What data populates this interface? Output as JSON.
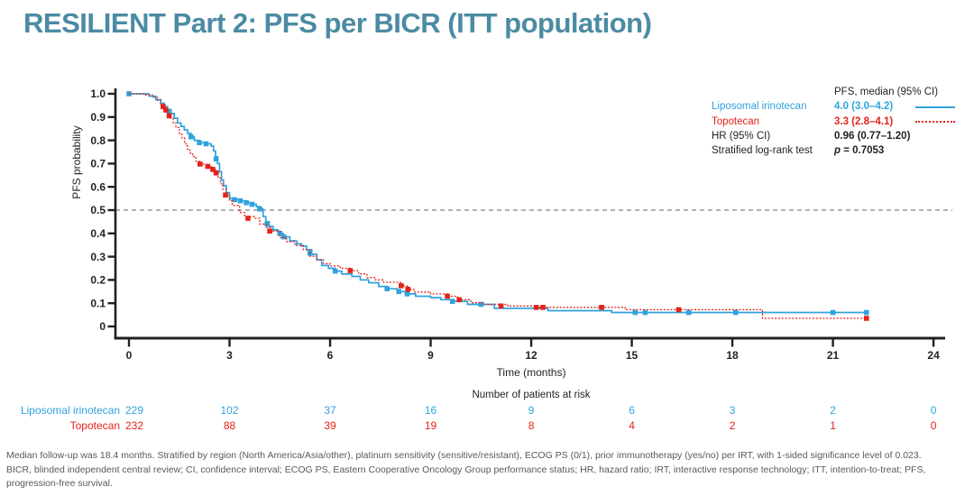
{
  "slide": {
    "title": "RESILIENT Part 2: PFS per BICR (ITT population)"
  },
  "colors": {
    "title": "#4b8ba3",
    "liposomal_irinotecan": "#30a3dd",
    "topotecan": "#e2231a",
    "axis": "#231f20",
    "reference_line": "#999999",
    "footnote": "#58595b"
  },
  "legend": {
    "header": "PFS, median (95% CI)",
    "rows": [
      {
        "label": "Liposomal irinotecan",
        "value": "4.0 (3.0–4.2)"
      },
      {
        "label": "Topotecan",
        "value": "3.3 (2.8–4.1)"
      },
      {
        "label": "HR (95% CI)",
        "value": "0.96 (0.77–1.20)"
      },
      {
        "label": "Stratified log-rank test",
        "p_symbol": "p",
        "p_value": "= 0.7053"
      }
    ]
  },
  "chart_data": {
    "type": "line",
    "subtype": "kaplan-meier-step",
    "title": "",
    "xlabel": "Time (months)",
    "ylabel": "PFS probability",
    "xlim": [
      0,
      24
    ],
    "ylim": [
      0,
      1.0
    ],
    "xticks": [
      0,
      3,
      6,
      9,
      12,
      15,
      18,
      21,
      24
    ],
    "ytick_labels": [
      "0",
      "0.1",
      "0.2",
      "0.3",
      "0.4",
      "0.5",
      "0.6",
      "0.7",
      "0.8",
      "0.9",
      "1.0"
    ],
    "reference_line_y": 0.5,
    "grid": false,
    "legend_position": "top-right",
    "hazard_ratio": "0.96 (0.77–1.20)",
    "log_rank_p": "0.7053",
    "series": [
      {
        "name": "Liposomal irinotecan",
        "color": "#30a3dd",
        "line_style": "solid",
        "median_months": 4.0,
        "median_ci": "3.0–4.2",
        "steps": [
          [
            0,
            1
          ],
          [
            0.6,
            0.99
          ],
          [
            0.8,
            0.975
          ],
          [
            0.95,
            0.96
          ],
          [
            1.05,
            0.945
          ],
          [
            1.15,
            0.93
          ],
          [
            1.25,
            0.915
          ],
          [
            1.35,
            0.895
          ],
          [
            1.45,
            0.875
          ],
          [
            1.55,
            0.86
          ],
          [
            1.65,
            0.845
          ],
          [
            1.75,
            0.83
          ],
          [
            1.85,
            0.815
          ],
          [
            1.95,
            0.8
          ],
          [
            2.1,
            0.79
          ],
          [
            2.3,
            0.785
          ],
          [
            2.45,
            0.775
          ],
          [
            2.52,
            0.755
          ],
          [
            2.58,
            0.73
          ],
          [
            2.64,
            0.7
          ],
          [
            2.7,
            0.665
          ],
          [
            2.76,
            0.63
          ],
          [
            2.82,
            0.605
          ],
          [
            2.9,
            0.575
          ],
          [
            3.0,
            0.55
          ],
          [
            3.1,
            0.545
          ],
          [
            3.3,
            0.54
          ],
          [
            3.5,
            0.532
          ],
          [
            3.65,
            0.525
          ],
          [
            3.8,
            0.515
          ],
          [
            3.9,
            0.505
          ],
          [
            4.0,
            0.472
          ],
          [
            4.08,
            0.45
          ],
          [
            4.18,
            0.43
          ],
          [
            4.3,
            0.415
          ],
          [
            4.45,
            0.4
          ],
          [
            4.6,
            0.385
          ],
          [
            4.8,
            0.368
          ],
          [
            5.0,
            0.355
          ],
          [
            5.15,
            0.345
          ],
          [
            5.3,
            0.33
          ],
          [
            5.45,
            0.31
          ],
          [
            5.6,
            0.287
          ],
          [
            5.75,
            0.262
          ],
          [
            5.95,
            0.25
          ],
          [
            6.15,
            0.238
          ],
          [
            6.35,
            0.225
          ],
          [
            6.65,
            0.215
          ],
          [
            6.9,
            0.2
          ],
          [
            7.15,
            0.188
          ],
          [
            7.45,
            0.172
          ],
          [
            7.7,
            0.162
          ],
          [
            8.0,
            0.15
          ],
          [
            8.25,
            0.14
          ],
          [
            8.55,
            0.13
          ],
          [
            9.0,
            0.124
          ],
          [
            9.3,
            0.115
          ],
          [
            9.7,
            0.108
          ],
          [
            10.1,
            0.095
          ],
          [
            10.9,
            0.078
          ],
          [
            12.5,
            0.068
          ],
          [
            14.4,
            0.06
          ],
          [
            22.0,
            0.06
          ]
        ],
        "censor_marks": [
          [
            0,
            1
          ],
          [
            1.2,
            0.925
          ],
          [
            1.85,
            0.815
          ],
          [
            2.1,
            0.79
          ],
          [
            2.3,
            0.785
          ],
          [
            2.6,
            0.72
          ],
          [
            3.15,
            0.545
          ],
          [
            3.32,
            0.54
          ],
          [
            3.5,
            0.532
          ],
          [
            3.67,
            0.525
          ],
          [
            3.9,
            0.505
          ],
          [
            4.12,
            0.44
          ],
          [
            4.5,
            0.4
          ],
          [
            4.62,
            0.385
          ],
          [
            5.4,
            0.315
          ],
          [
            6.15,
            0.238
          ],
          [
            7.7,
            0.162
          ],
          [
            8.05,
            0.15
          ],
          [
            8.3,
            0.14
          ],
          [
            9.65,
            0.108
          ],
          [
            10.5,
            0.095
          ],
          [
            15.1,
            0.06
          ],
          [
            15.4,
            0.06
          ],
          [
            16.7,
            0.06
          ],
          [
            18.1,
            0.06
          ],
          [
            21.0,
            0.06
          ],
          [
            22.0,
            0.06
          ]
        ]
      },
      {
        "name": "Topotecan",
        "color": "#e2231a",
        "line_style": "dotted",
        "median_months": 3.3,
        "median_ci": "2.8–4.1",
        "steps": [
          [
            0,
            1
          ],
          [
            0.5,
            0.995
          ],
          [
            0.7,
            0.985
          ],
          [
            0.85,
            0.972
          ],
          [
            0.95,
            0.955
          ],
          [
            1.05,
            0.935
          ],
          [
            1.15,
            0.915
          ],
          [
            1.25,
            0.895
          ],
          [
            1.32,
            0.875
          ],
          [
            1.4,
            0.855
          ],
          [
            1.5,
            0.83
          ],
          [
            1.58,
            0.81
          ],
          [
            1.66,
            0.785
          ],
          [
            1.74,
            0.762
          ],
          [
            1.82,
            0.745
          ],
          [
            1.9,
            0.73
          ],
          [
            2.0,
            0.71
          ],
          [
            2.1,
            0.698
          ],
          [
            2.3,
            0.688
          ],
          [
            2.45,
            0.675
          ],
          [
            2.58,
            0.66
          ],
          [
            2.66,
            0.638
          ],
          [
            2.73,
            0.613
          ],
          [
            2.8,
            0.59
          ],
          [
            2.9,
            0.565
          ],
          [
            3.0,
            0.54
          ],
          [
            3.08,
            0.52
          ],
          [
            3.3,
            0.49
          ],
          [
            3.45,
            0.472
          ],
          [
            3.75,
            0.465
          ],
          [
            3.9,
            0.44
          ],
          [
            4.1,
            0.425
          ],
          [
            4.25,
            0.41
          ],
          [
            4.5,
            0.382
          ],
          [
            4.7,
            0.365
          ],
          [
            4.95,
            0.348
          ],
          [
            5.2,
            0.33
          ],
          [
            5.4,
            0.302
          ],
          [
            5.6,
            0.287
          ],
          [
            5.8,
            0.27
          ],
          [
            6.0,
            0.26
          ],
          [
            6.3,
            0.25
          ],
          [
            6.6,
            0.24
          ],
          [
            6.85,
            0.226
          ],
          [
            7.1,
            0.21
          ],
          [
            7.35,
            0.2
          ],
          [
            7.6,
            0.19
          ],
          [
            8.1,
            0.175
          ],
          [
            8.3,
            0.16
          ],
          [
            8.5,
            0.148
          ],
          [
            9.0,
            0.14
          ],
          [
            9.5,
            0.13
          ],
          [
            9.8,
            0.115
          ],
          [
            10.2,
            0.102
          ],
          [
            10.6,
            0.095
          ],
          [
            11.3,
            0.088
          ],
          [
            12.2,
            0.082
          ],
          [
            14.8,
            0.072
          ],
          [
            18.9,
            0.035
          ],
          [
            22.0,
            0.035
          ]
        ],
        "censor_marks": [
          [
            1.02,
            0.945
          ],
          [
            1.1,
            0.93
          ],
          [
            1.2,
            0.905
          ],
          [
            2.12,
            0.698
          ],
          [
            2.35,
            0.688
          ],
          [
            2.5,
            0.675
          ],
          [
            2.6,
            0.66
          ],
          [
            2.88,
            0.565
          ],
          [
            3.55,
            0.465
          ],
          [
            4.2,
            0.41
          ],
          [
            6.6,
            0.24
          ],
          [
            8.12,
            0.175
          ],
          [
            8.32,
            0.16
          ],
          [
            9.5,
            0.13
          ],
          [
            9.85,
            0.115
          ],
          [
            11.1,
            0.088
          ],
          [
            12.15,
            0.082
          ],
          [
            12.35,
            0.082
          ],
          [
            14.1,
            0.082
          ],
          [
            16.4,
            0.072
          ],
          [
            22.0,
            0.035
          ]
        ]
      }
    ]
  },
  "at_risk": {
    "heading": "Number of patients at risk",
    "timepoints": [
      0,
      3,
      6,
      9,
      12,
      15,
      18,
      21,
      24
    ],
    "rows": [
      {
        "label": "Liposomal irinotecan",
        "color": "#30a3dd",
        "counts": [
          229,
          102,
          37,
          16,
          9,
          6,
          3,
          2,
          0
        ]
      },
      {
        "label": "Topotecan",
        "color": "#e2231a",
        "counts": [
          232,
          88,
          39,
          19,
          8,
          4,
          2,
          1,
          0
        ]
      }
    ]
  },
  "footnote": {
    "line1": "Median follow-up was 18.4 months. Stratified by region (North America/Asia/other), platinum sensitivity (sensitive/resistant), ECOG PS (0/1), prior immunotherapy (yes/no) per IRT, with 1-sided significance level of 0.023.",
    "line2": "BICR, blinded independent central review; CI, confidence interval; ECOG PS, Eastern Cooperative Oncology Group performance status; HR, hazard ratio; IRT, interactive response technology; ITT, intention-to-treat; PFS, progression-free survival."
  }
}
